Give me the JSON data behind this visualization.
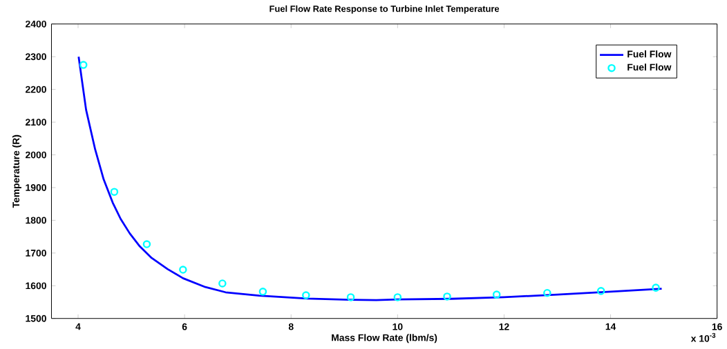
{
  "chart_data": {
    "type": "line",
    "title": "Fuel Flow Rate Response to Turbine Inlet Temperature",
    "xlabel": "Mass Flow Rate (lbm/s)",
    "ylabel": "Temperature (R)",
    "annotations": [
      "x 10$^{-3}$"
    ],
    "xlim": [
      3.5,
      16
    ],
    "ylim": [
      1500,
      2400
    ],
    "xticks": [
      4,
      6,
      8,
      10,
      12,
      14,
      16
    ],
    "yticks": [
      1500,
      1600,
      1700,
      1800,
      1900,
      2000,
      2100,
      2200,
      2300,
      2400
    ],
    "grid": false,
    "legend": "top right",
    "series": [
      {
        "name": "Fuel Flow",
        "marker": "none",
        "color": "#0000ff",
        "x": [
          4.01,
          4.15,
          4.32,
          4.48,
          4.65,
          4.8,
          4.97,
          5.16,
          5.38,
          5.68,
          5.97,
          6.39,
          6.77,
          7.4,
          8.3,
          9.1,
          9.6,
          10.0,
          11.0,
          12.0,
          13.0,
          14.0,
          14.96
        ],
        "values": [
          2300,
          2138,
          2017,
          1925,
          1854,
          1804,
          1760,
          1720,
          1685,
          1651,
          1623,
          1596,
          1580,
          1570,
          1561,
          1557,
          1556,
          1558,
          1560,
          1565,
          1573,
          1582,
          1591
        ]
      },
      {
        "name": "Fuel Flow",
        "type": "scatter",
        "marker": "circle",
        "color": "#00ffff",
        "x": [
          4.1,
          4.68,
          5.29,
          5.97,
          6.71,
          7.47,
          8.28,
          9.12,
          10.0,
          10.93,
          11.86,
          12.81,
          13.82,
          14.85
        ],
        "values": [
          2275,
          1887,
          1727,
          1649,
          1607,
          1582,
          1571,
          1565,
          1565,
          1567,
          1573,
          1578,
          1584,
          1594
        ]
      }
    ]
  }
}
